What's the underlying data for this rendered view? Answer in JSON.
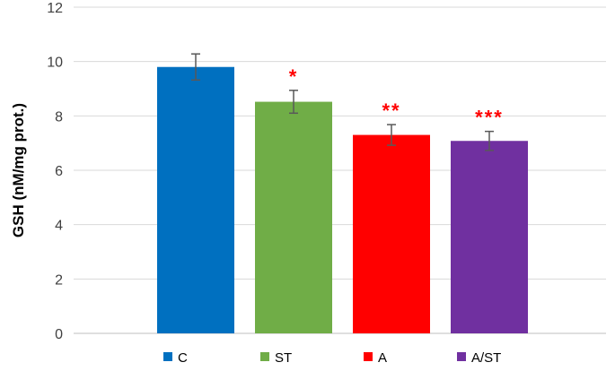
{
  "chart_data": {
    "type": "bar",
    "categories": [
      "C",
      "ST",
      "A",
      "A/ST"
    ],
    "values": [
      9.8,
      8.52,
      7.3,
      7.08
    ],
    "errors": [
      0.48,
      0.42,
      0.38,
      0.35
    ],
    "significance": [
      "",
      "*",
      "**",
      "***"
    ],
    "colors": [
      "#0070c0",
      "#70ad47",
      "#ff0000",
      "#7030a0"
    ],
    "significance_color": "#ff0000",
    "title": "",
    "xlabel": "",
    "ylabel": "GSH (nM/mg prot.)",
    "ylim": [
      0,
      12
    ],
    "yticks": [
      0,
      2,
      4,
      6,
      8,
      10,
      12
    ],
    "grid": true,
    "legend": "bottom",
    "legend_entries": [
      "C",
      "ST",
      "A",
      "A/ST"
    ]
  }
}
